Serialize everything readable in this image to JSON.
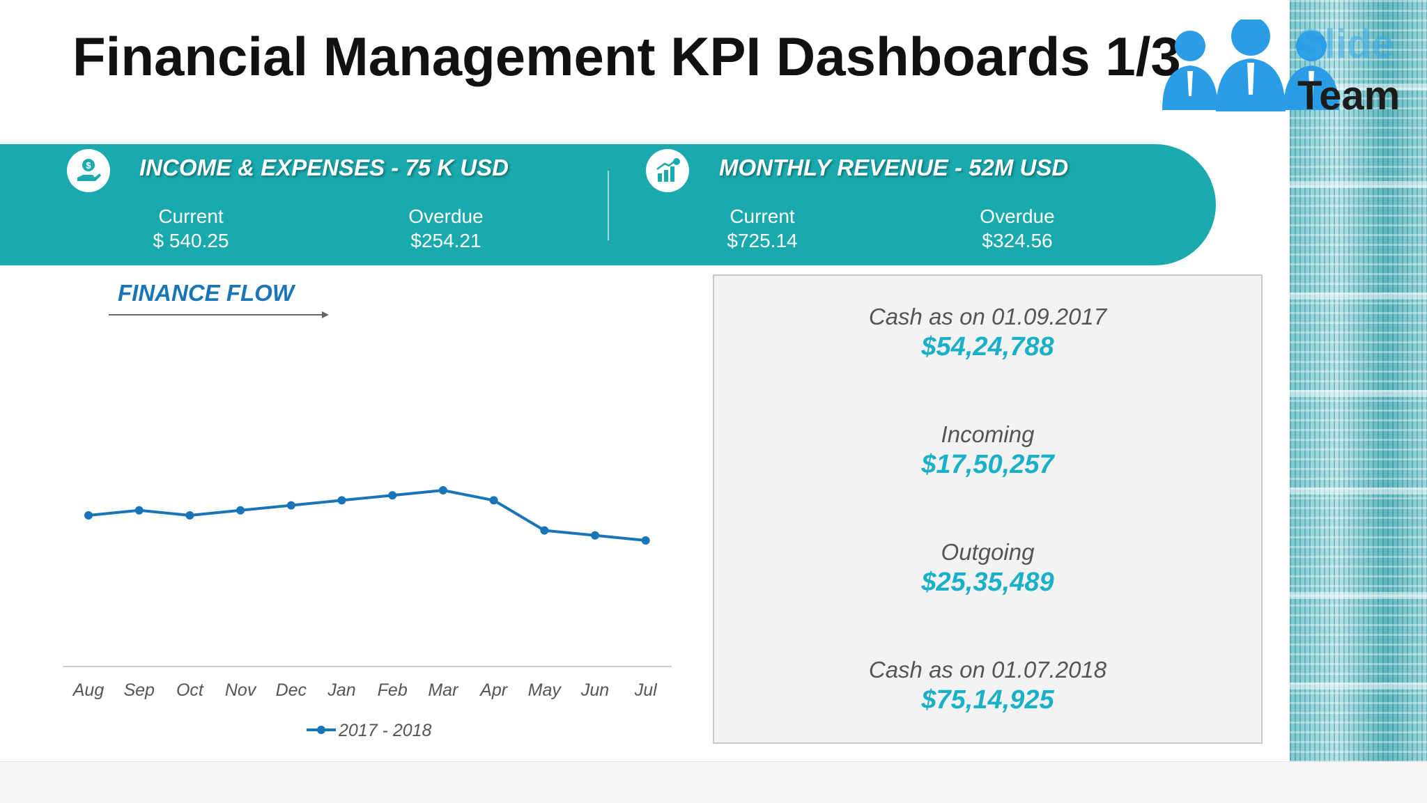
{
  "title": "Financial Management KPI Dashboards 1/3",
  "logo": {
    "line1": "Slide",
    "line2": "Team"
  },
  "kpi_banner": {
    "left": {
      "heading": "INCOME & EXPENSES - 75 K USD",
      "icon": "money-hand-icon",
      "current_label": "Current",
      "current_value": "$ 540.25",
      "overdue_label": "Overdue",
      "overdue_value": "$254.21"
    },
    "right": {
      "heading": "MONTHLY REVENUE - 52M USD",
      "icon": "growth-chart-icon",
      "current_label": "Current",
      "current_value": "$725.14",
      "overdue_label": "Overdue",
      "overdue_value": "$324.56"
    }
  },
  "finance_flow": {
    "title": "FINANCE FLOW"
  },
  "chart_data": {
    "type": "line",
    "title": "",
    "categories": [
      "Aug",
      "Sep",
      "Oct",
      "Nov",
      "Dec",
      "Jan",
      "Feb",
      "Mar",
      "Apr",
      "May",
      "Jun",
      "Jul"
    ],
    "series": [
      {
        "name": "2017 - 2018",
        "values": [
          50,
          52,
          50,
          52,
          54,
          56,
          58,
          60,
          56,
          44,
          42,
          40
        ]
      }
    ],
    "ylim": [
      0,
      100
    ],
    "grid": false,
    "legend": "bottom",
    "line_color": "#1a75b8"
  },
  "stats": [
    {
      "label": "Cash as on 01.09.2017",
      "value": "$54,24,788"
    },
    {
      "label": "Incoming",
      "value": "$17,50,257"
    },
    {
      "label": "Outgoing",
      "value": "$25,35,489"
    },
    {
      "label": "Cash as on 01.07.2018",
      "value": "$75,14,925"
    }
  ],
  "colors": {
    "banner": "#1aa9ad",
    "accent_value": "#1ab0c8",
    "series_line": "#1a75b8",
    "title_text": "#111111"
  }
}
